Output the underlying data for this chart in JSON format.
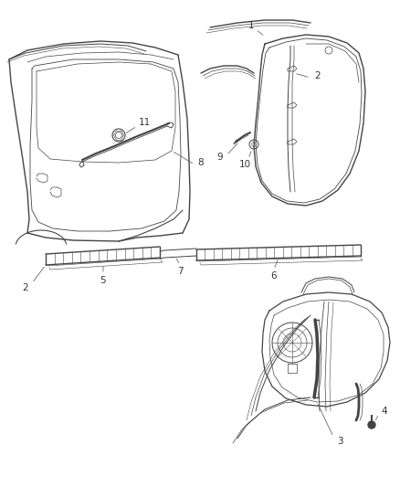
{
  "bg_color": "#ffffff",
  "line_color": "#444444",
  "label_color": "#333333",
  "figsize": [
    4.39,
    5.33
  ],
  "dpi": 100
}
